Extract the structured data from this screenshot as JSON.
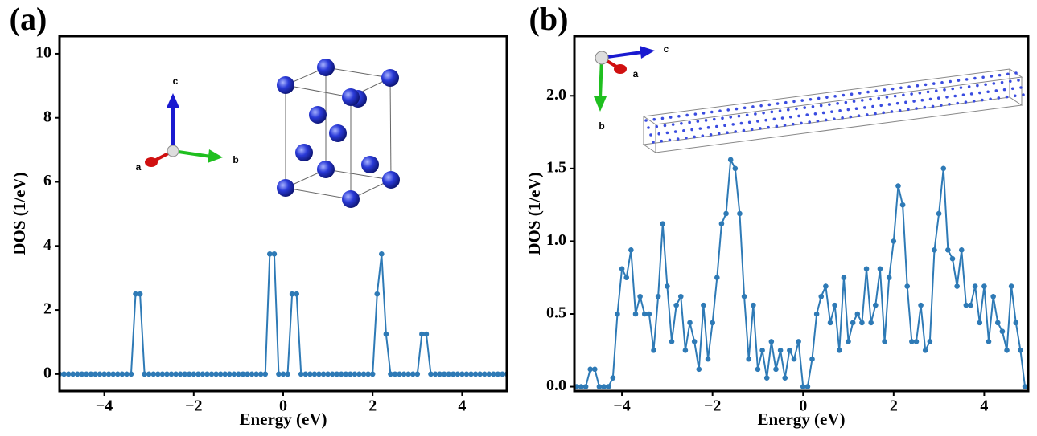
{
  "chart_data": [
    {
      "type": "line",
      "panel_label": "(a)",
      "xlabel": "Energy (eV)",
      "ylabel": "DOS (1/eV)",
      "color": "#2e7ab6",
      "inset_axes_labels": [
        "c",
        "b",
        "a"
      ],
      "xlim": [
        -5.0,
        5.0
      ],
      "ylim": [
        -0.53,
        10.55
      ],
      "xticks": [
        {
          "value": -4,
          "label": "−4"
        },
        {
          "value": -2,
          "label": "−2"
        },
        0,
        2,
        4
      ],
      "yticks": [
        0,
        2,
        4,
        6,
        8,
        10
      ],
      "x": [
        -5,
        -4.9,
        -4.8,
        -4.7,
        -4.6,
        -4.5,
        -4.4,
        -4.3,
        -4.2,
        -4.1,
        -4,
        -3.9,
        -3.8,
        -3.7,
        -3.6,
        -3.5,
        -3.4,
        -3.3,
        -3.2,
        -3.1,
        -3,
        -2.9,
        -2.8,
        -2.7,
        -2.6,
        -2.5,
        -2.4,
        -2.3,
        -2.2,
        -2.1,
        -2,
        -1.9,
        -1.8,
        -1.7,
        -1.6,
        -1.5,
        -1.4,
        -1.3,
        -1.2,
        -1.1,
        -1,
        -0.9,
        -0.8,
        -0.7,
        -0.6,
        -0.5,
        -0.4,
        -0.3,
        -0.2,
        -0.1,
        0,
        0.1,
        0.2,
        0.3,
        0.4,
        0.5,
        0.6,
        0.7,
        0.8,
        0.9,
        1,
        1.1,
        1.2,
        1.3,
        1.4,
        1.5,
        1.6,
        1.7,
        1.8,
        1.9,
        2,
        2.1,
        2.2,
        2.3,
        2.4,
        2.5,
        2.6,
        2.7,
        2.8,
        2.9,
        3,
        3.1,
        3.2,
        3.3,
        3.4,
        3.5,
        3.6,
        3.7,
        3.8,
        3.9,
        4,
        4.1,
        4.2,
        4.3,
        4.4,
        4.5,
        4.6,
        4.7,
        4.8,
        4.9,
        5
      ],
      "values": [
        0,
        0,
        0,
        0,
        0,
        0,
        0,
        0,
        0,
        0,
        0,
        0,
        0,
        0,
        0,
        0,
        0,
        2.5,
        2.5,
        0,
        0,
        0,
        0,
        0,
        0,
        0,
        0,
        0,
        0,
        0,
        0,
        0,
        0,
        0,
        0,
        0,
        0,
        0,
        0,
        0,
        0,
        0,
        0,
        0,
        0,
        0,
        0,
        3.75,
        3.75,
        0,
        0,
        0,
        2.5,
        2.5,
        0,
        0,
        0,
        0,
        0,
        0,
        0,
        0,
        0,
        0,
        0,
        0,
        0,
        0,
        0,
        0,
        0,
        2.5,
        3.75,
        1.25,
        0,
        0,
        0,
        0,
        0,
        0,
        0,
        1.25,
        1.25,
        0,
        0,
        0,
        0,
        0,
        0,
        0,
        0,
        0,
        0,
        0,
        0,
        0,
        0,
        0,
        0,
        0,
        0
      ]
    },
    {
      "type": "line",
      "panel_label": "(b)",
      "xlabel": "Energy (eV)",
      "ylabel": "DOS (1/eV)",
      "color": "#2e7ab6",
      "inset_axes_labels": [
        "c",
        "a",
        "b"
      ],
      "xlim": [
        -5.05,
        4.97
      ],
      "ylim": [
        -0.03,
        2.41
      ],
      "xticks": [
        {
          "value": -4,
          "label": "−4"
        },
        {
          "value": -2,
          "label": "−2"
        },
        0,
        2,
        4
      ],
      "yticks": [
        {
          "value": 0,
          "label": "0.0"
        },
        0.5,
        {
          "value": 1,
          "label": "1.0"
        },
        1.5,
        {
          "value": 2,
          "label": "2.0"
        }
      ],
      "x": [
        -5,
        -4.9,
        -4.8,
        -4.7,
        -4.6,
        -4.5,
        -4.4,
        -4.3,
        -4.2,
        -4.1,
        -4,
        -3.9,
        -3.8,
        -3.7,
        -3.6,
        -3.5,
        -3.4,
        -3.3,
        -3.2,
        -3.1,
        -3,
        -2.9,
        -2.8,
        -2.7,
        -2.6,
        -2.5,
        -2.4,
        -2.3,
        -2.2,
        -2.1,
        -2,
        -1.9,
        -1.8,
        -1.7,
        -1.6,
        -1.5,
        -1.4,
        -1.3,
        -1.2,
        -1.1,
        -1,
        -0.9,
        -0.8,
        -0.7,
        -0.6,
        -0.5,
        -0.4,
        -0.3,
        -0.2,
        -0.1,
        0,
        0.1,
        0.2,
        0.3,
        0.4,
        0.5,
        0.6,
        0.7,
        0.8,
        0.9,
        1,
        1.1,
        1.2,
        1.3,
        1.4,
        1.5,
        1.6,
        1.7,
        1.8,
        1.9,
        2,
        2.1,
        2.2,
        2.3,
        2.4,
        2.5,
        2.6,
        2.7,
        2.8,
        2.9,
        3,
        3.1,
        3.2,
        3.3,
        3.4,
        3.5,
        3.6,
        3.7,
        3.8,
        3.9,
        4,
        4.1,
        4.2,
        4.3,
        4.4,
        4.5,
        4.6,
        4.7,
        4.8,
        4.9
      ],
      "values": [
        0,
        0,
        0,
        0.12,
        0.12,
        0,
        0,
        0,
        0.06,
        0.5,
        0.81,
        0.75,
        0.94,
        0.5,
        0.62,
        0.5,
        0.5,
        0.25,
        0.62,
        1.12,
        0.69,
        0.31,
        0.56,
        0.62,
        0.25,
        0.44,
        0.31,
        0.12,
        0.56,
        0.19,
        0.44,
        0.75,
        1.12,
        1.19,
        1.56,
        1.5,
        1.19,
        0.62,
        0.19,
        0.56,
        0.12,
        0.25,
        0.06,
        0.31,
        0.12,
        0.25,
        0.06,
        0.25,
        0.19,
        0.31,
        0,
        0,
        0.19,
        0.5,
        0.62,
        0.69,
        0.44,
        0.56,
        0.25,
        0.75,
        0.31,
        0.44,
        0.5,
        0.44,
        0.81,
        0.44,
        0.56,
        0.81,
        0.31,
        0.75,
        1,
        1.38,
        1.25,
        0.69,
        0.31,
        0.31,
        0.56,
        0.25,
        0.31,
        0.94,
        1.19,
        1.5,
        0.94,
        0.88,
        0.69,
        0.94,
        0.56,
        0.56,
        0.69,
        0.44,
        0.69,
        0.31,
        0.62,
        0.44,
        0.38,
        0.25,
        0.69,
        0.44,
        0.25,
        0
      ]
    }
  ]
}
